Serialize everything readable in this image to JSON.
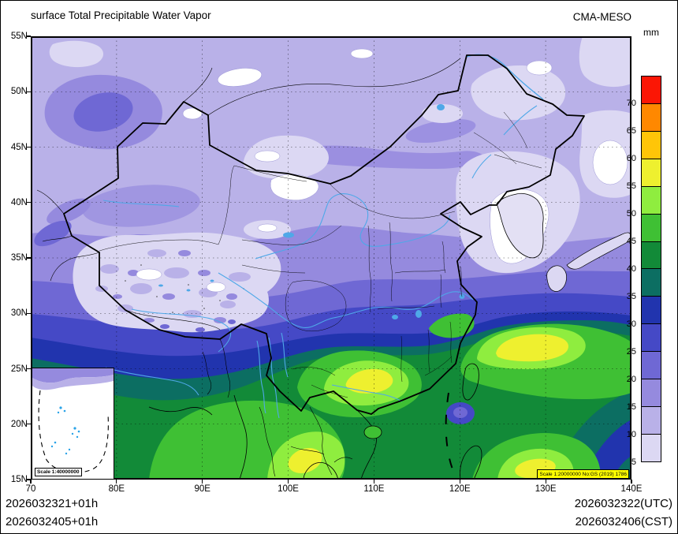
{
  "header": {
    "title": "surface Total Precipitable Water Vapor",
    "model": "CMA-MESO"
  },
  "colorbar": {
    "unit": "mm",
    "bands": [
      {
        "value": 5,
        "color": "#dcd8f3"
      },
      {
        "value": 10,
        "color": "#b9b1e8"
      },
      {
        "value": 15,
        "color": "#958ade"
      },
      {
        "value": 20,
        "color": "#6f68d4"
      },
      {
        "value": 25,
        "color": "#4549c6"
      },
      {
        "value": 30,
        "color": "#2134ae"
      },
      {
        "value": 35,
        "color": "#0c6e62"
      },
      {
        "value": 40,
        "color": "#128a38"
      },
      {
        "value": 45,
        "color": "#3fc034"
      },
      {
        "value": 50,
        "color": "#8fed3f"
      },
      {
        "value": 55,
        "color": "#eef02f"
      },
      {
        "value": 60,
        "color": "#ffc508"
      },
      {
        "value": 65,
        "color": "#ff8800"
      },
      {
        "value": 70,
        "color": "#fb1605"
      }
    ]
  },
  "axes": {
    "x": [
      "70",
      "80E",
      "90E",
      "100E",
      "110E",
      "120E",
      "130E",
      "140E"
    ],
    "y": [
      "55N",
      "50N",
      "45N",
      "40N",
      "35N",
      "30N",
      "25N",
      "20N",
      "15N"
    ]
  },
  "map": {
    "inset_scale": "Scale 1:40000000",
    "scale_note": "Scale 1:20000000 No:GS (2019) 1786"
  },
  "footer": {
    "left": [
      "2026032321+01h",
      "2026032405+01h"
    ],
    "right": [
      "2026032322(UTC)",
      "2026032406(CST)"
    ]
  }
}
